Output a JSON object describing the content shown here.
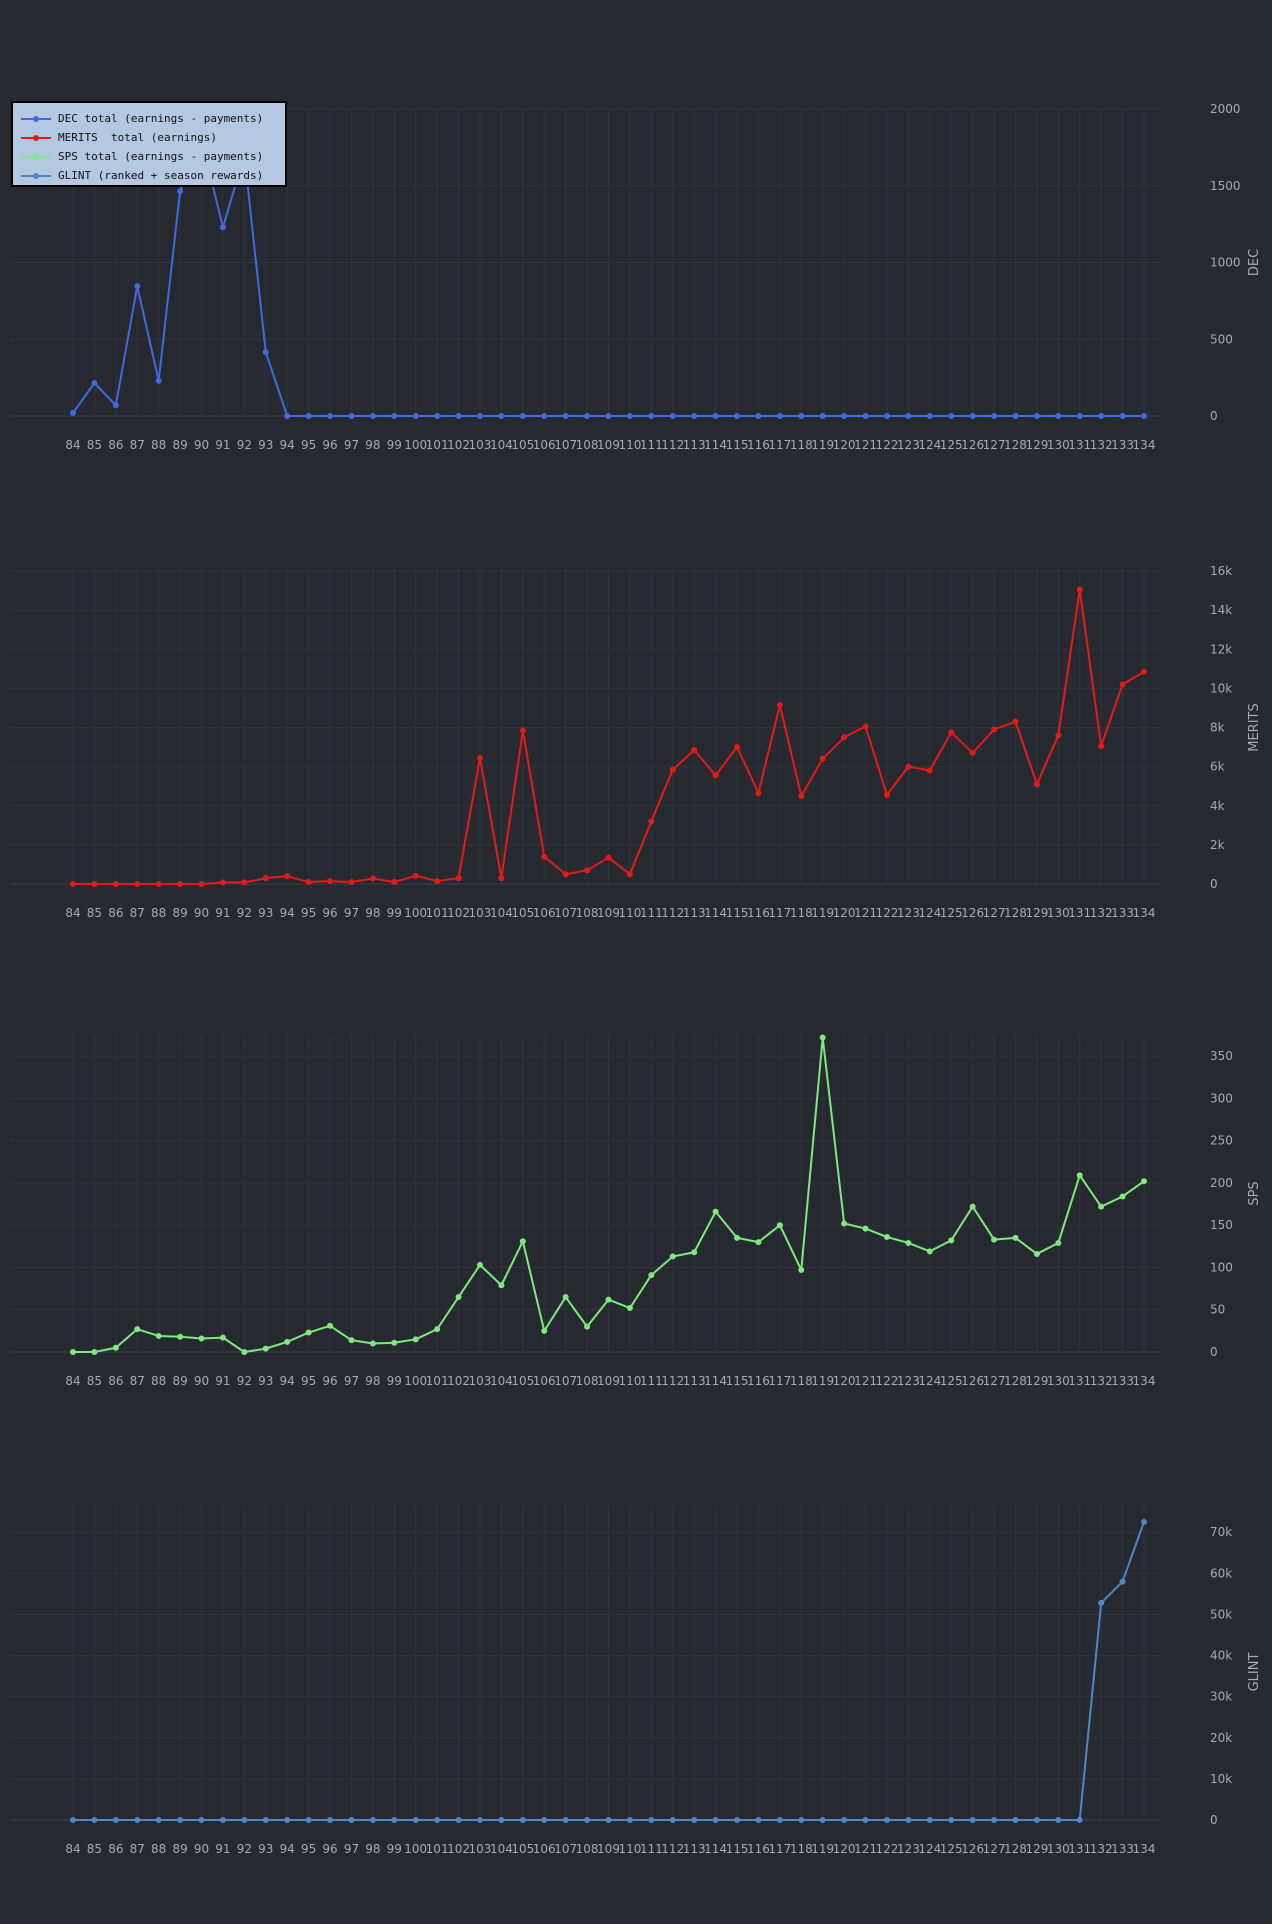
{
  "legend": [
    {
      "label": "DEC total (earnings - payments)",
      "color": "#4169e1"
    },
    {
      "label": "MERITS  total (earnings)",
      "color": "#e31a1a"
    },
    {
      "label": "SPS total (earnings - payments)",
      "color": "#7fe87f"
    },
    {
      "label": "GLINT (ranked + season rewards)",
      "color": "#4f86c6"
    }
  ],
  "chart_data": [
    {
      "type": "line",
      "ylabel": "DEC",
      "color": "#4169e1",
      "ylim": [
        0,
        2000
      ],
      "yticks": [
        0,
        500,
        1000,
        1500,
        2000
      ],
      "ytick_labels": [
        "0",
        "500",
        "1000",
        "1500",
        "2000"
      ],
      "x": [
        84,
        85,
        86,
        87,
        88,
        89,
        90,
        91,
        92,
        93,
        94,
        95,
        96,
        97,
        98,
        99,
        100,
        101,
        102,
        103,
        104,
        105,
        106,
        107,
        108,
        109,
        110,
        111,
        112,
        113,
        114,
        115,
        116,
        117,
        118,
        119,
        120,
        121,
        122,
        123,
        124,
        125,
        126,
        127,
        128,
        129,
        130,
        131,
        132,
        133,
        134
      ],
      "values": [
        20,
        215,
        70,
        845,
        230,
        1465,
        1800,
        1230,
        1700,
        415,
        0,
        0,
        0,
        0,
        0,
        0,
        0,
        0,
        0,
        0,
        0,
        0,
        0,
        0,
        0,
        0,
        0,
        0,
        0,
        0,
        0,
        0,
        0,
        0,
        0,
        0,
        0,
        0,
        0,
        0,
        0,
        0,
        0,
        0,
        0,
        0,
        0,
        0,
        0,
        0,
        0
      ],
      "grid": true
    },
    {
      "type": "line",
      "ylabel": "MERITS",
      "color": "#e31a1a",
      "ylim": [
        0,
        16000
      ],
      "yticks": [
        0,
        2000,
        4000,
        6000,
        8000,
        10000,
        12000,
        14000,
        16000
      ],
      "ytick_labels": [
        "0",
        "2k",
        "4k",
        "6k",
        "8k",
        "10k",
        "12k",
        "14k",
        "16k"
      ],
      "x": [
        84,
        85,
        86,
        87,
        88,
        89,
        90,
        91,
        92,
        93,
        94,
        95,
        96,
        97,
        98,
        99,
        100,
        101,
        102,
        103,
        104,
        105,
        106,
        107,
        108,
        109,
        110,
        111,
        112,
        113,
        114,
        115,
        116,
        117,
        118,
        119,
        120,
        121,
        122,
        123,
        124,
        125,
        126,
        127,
        128,
        129,
        130,
        131,
        132,
        133,
        134
      ],
      "values": [
        0,
        0,
        0,
        0,
        0,
        0,
        0,
        80,
        80,
        300,
        400,
        100,
        150,
        100,
        280,
        100,
        420,
        150,
        300,
        6450,
        300,
        7850,
        1400,
        500,
        700,
        1350,
        500,
        3200,
        5850,
        6850,
        5550,
        7000,
        4650,
        9150,
        4500,
        6400,
        7500,
        8050,
        4550,
        6000,
        5800,
        7750,
        6700,
        7900,
        8300,
        5100,
        7600,
        15050,
        7050,
        10200,
        10850
      ],
      "grid": true
    },
    {
      "type": "line",
      "ylabel": "SPS",
      "color": "#7fe87f",
      "ylim": [
        0,
        375
      ],
      "yticks": [
        0,
        50,
        100,
        150,
        200,
        250,
        300,
        350
      ],
      "ytick_labels": [
        "0",
        "50",
        "100",
        "150",
        "200",
        "250",
        "300",
        "350"
      ],
      "x": [
        84,
        85,
        86,
        87,
        88,
        89,
        90,
        91,
        92,
        93,
        94,
        95,
        96,
        97,
        98,
        99,
        100,
        101,
        102,
        103,
        104,
        105,
        106,
        107,
        108,
        109,
        110,
        111,
        112,
        113,
        114,
        115,
        116,
        117,
        118,
        119,
        120,
        121,
        122,
        123,
        124,
        125,
        126,
        127,
        128,
        129,
        130,
        131,
        132,
        133,
        134
      ],
      "values": [
        0,
        0,
        5,
        27,
        19,
        18,
        16,
        17,
        0,
        4,
        12,
        23,
        31,
        14,
        10,
        11,
        15,
        27,
        65,
        103,
        79,
        131,
        25,
        65,
        30,
        62,
        52,
        91,
        113,
        118,
        166,
        135,
        130,
        150,
        97,
        372,
        152,
        146,
        136,
        129,
        119,
        132,
        172,
        133,
        135,
        116,
        129,
        209,
        172,
        184,
        202
      ],
      "grid": true
    },
    {
      "type": "line",
      "ylabel": "GLINT",
      "color": "#4f86c6",
      "ylim": [
        0,
        72000
      ],
      "yticks": [
        0,
        10000,
        20000,
        30000,
        40000,
        50000,
        60000,
        70000
      ],
      "ytick_labels": [
        "0",
        "10k",
        "20k",
        "30k",
        "40k",
        "50k",
        "60k",
        "70k"
      ],
      "x": [
        84,
        85,
        86,
        87,
        88,
        89,
        90,
        91,
        92,
        93,
        94,
        95,
        96,
        97,
        98,
        99,
        100,
        101,
        102,
        103,
        104,
        105,
        106,
        107,
        108,
        109,
        110,
        111,
        112,
        113,
        114,
        115,
        116,
        117,
        118,
        119,
        120,
        121,
        122,
        123,
        124,
        125,
        126,
        127,
        128,
        129,
        130,
        131,
        132,
        133,
        134
      ],
      "values": [
        0,
        0,
        0,
        0,
        0,
        0,
        0,
        0,
        0,
        0,
        0,
        0,
        0,
        0,
        0,
        0,
        0,
        0,
        0,
        0,
        0,
        0,
        0,
        0,
        0,
        0,
        0,
        0,
        0,
        0,
        0,
        0,
        0,
        0,
        0,
        0,
        0,
        0,
        0,
        0,
        0,
        0,
        0,
        0,
        0,
        0,
        0,
        0,
        52800,
        58000,
        72500
      ],
      "grid": true
    }
  ]
}
